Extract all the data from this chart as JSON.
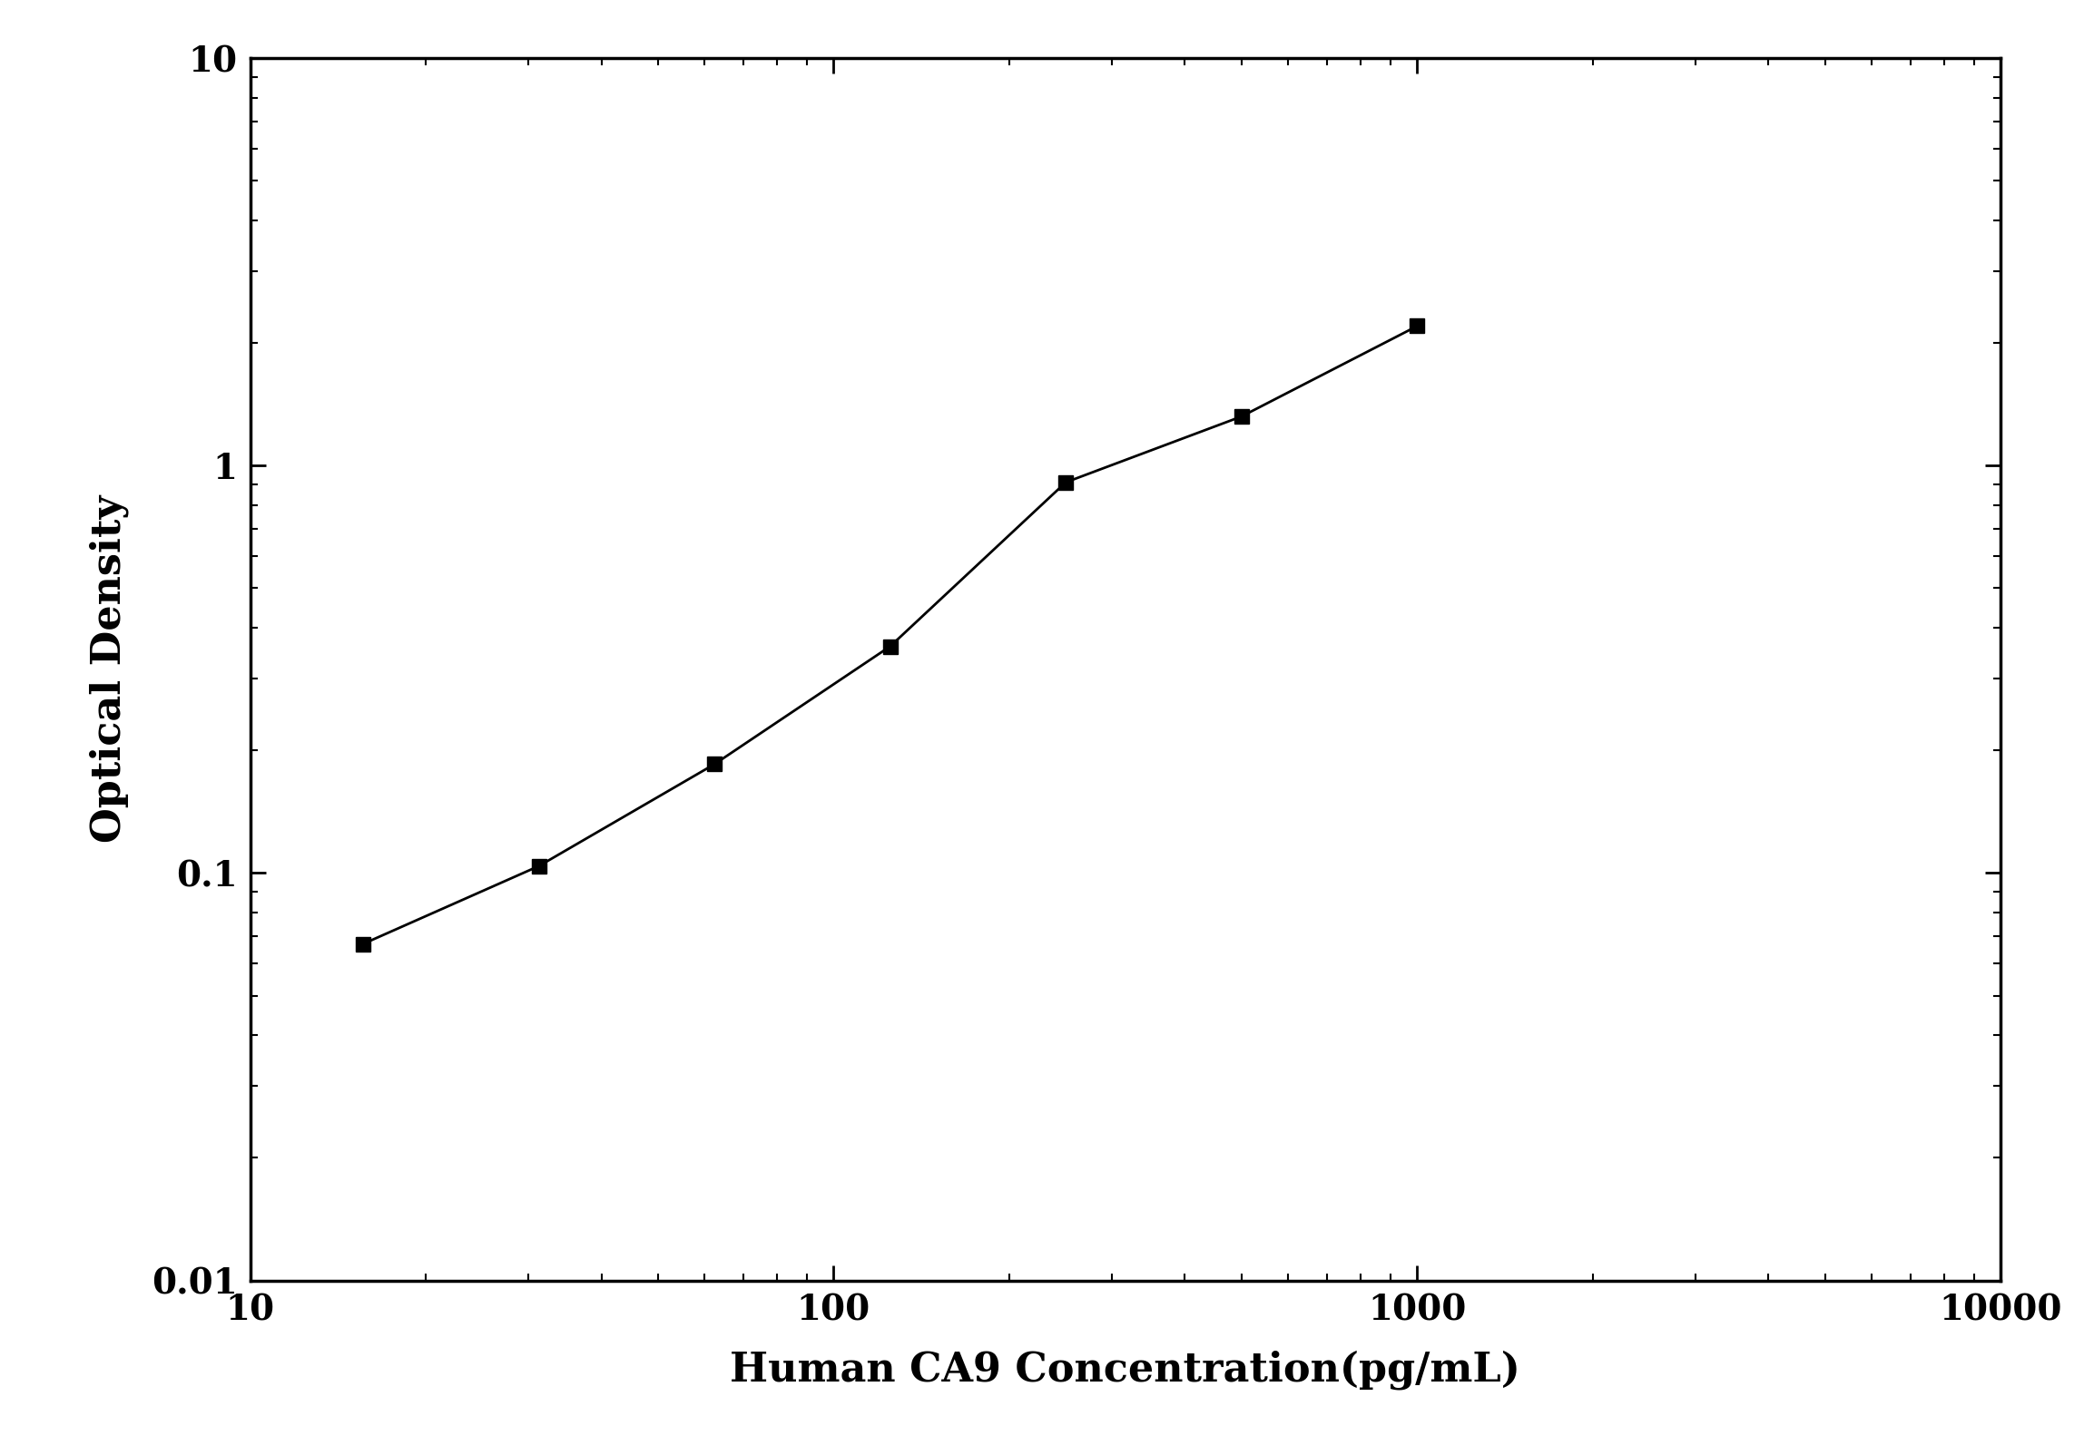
{
  "x": [
    15.625,
    31.25,
    62.5,
    125,
    250,
    500,
    1000
  ],
  "y": [
    0.067,
    0.104,
    0.185,
    0.36,
    0.91,
    1.32,
    2.2
  ],
  "xlim": [
    10,
    10000
  ],
  "ylim": [
    0.01,
    10
  ],
  "xlabel": "Human CA9 Concentration(pg/mL)",
  "ylabel": "Optical Density",
  "xlabel_fontsize": 32,
  "ylabel_fontsize": 32,
  "tick_labelsize": 28,
  "line_color": "#000000",
  "marker": "s",
  "marker_size": 12,
  "marker_color": "#000000",
  "linewidth": 2.0,
  "background_color": "#ffffff",
  "spine_linewidth": 2.5,
  "ytick_labels": [
    "0.01",
    "0.1",
    "1",
    "10"
  ],
  "ytick_values": [
    0.01,
    0.1,
    1,
    10
  ],
  "xtick_labels": [
    "10",
    "100",
    "1000",
    "10000"
  ],
  "xtick_values": [
    10,
    100,
    1000,
    10000
  ]
}
